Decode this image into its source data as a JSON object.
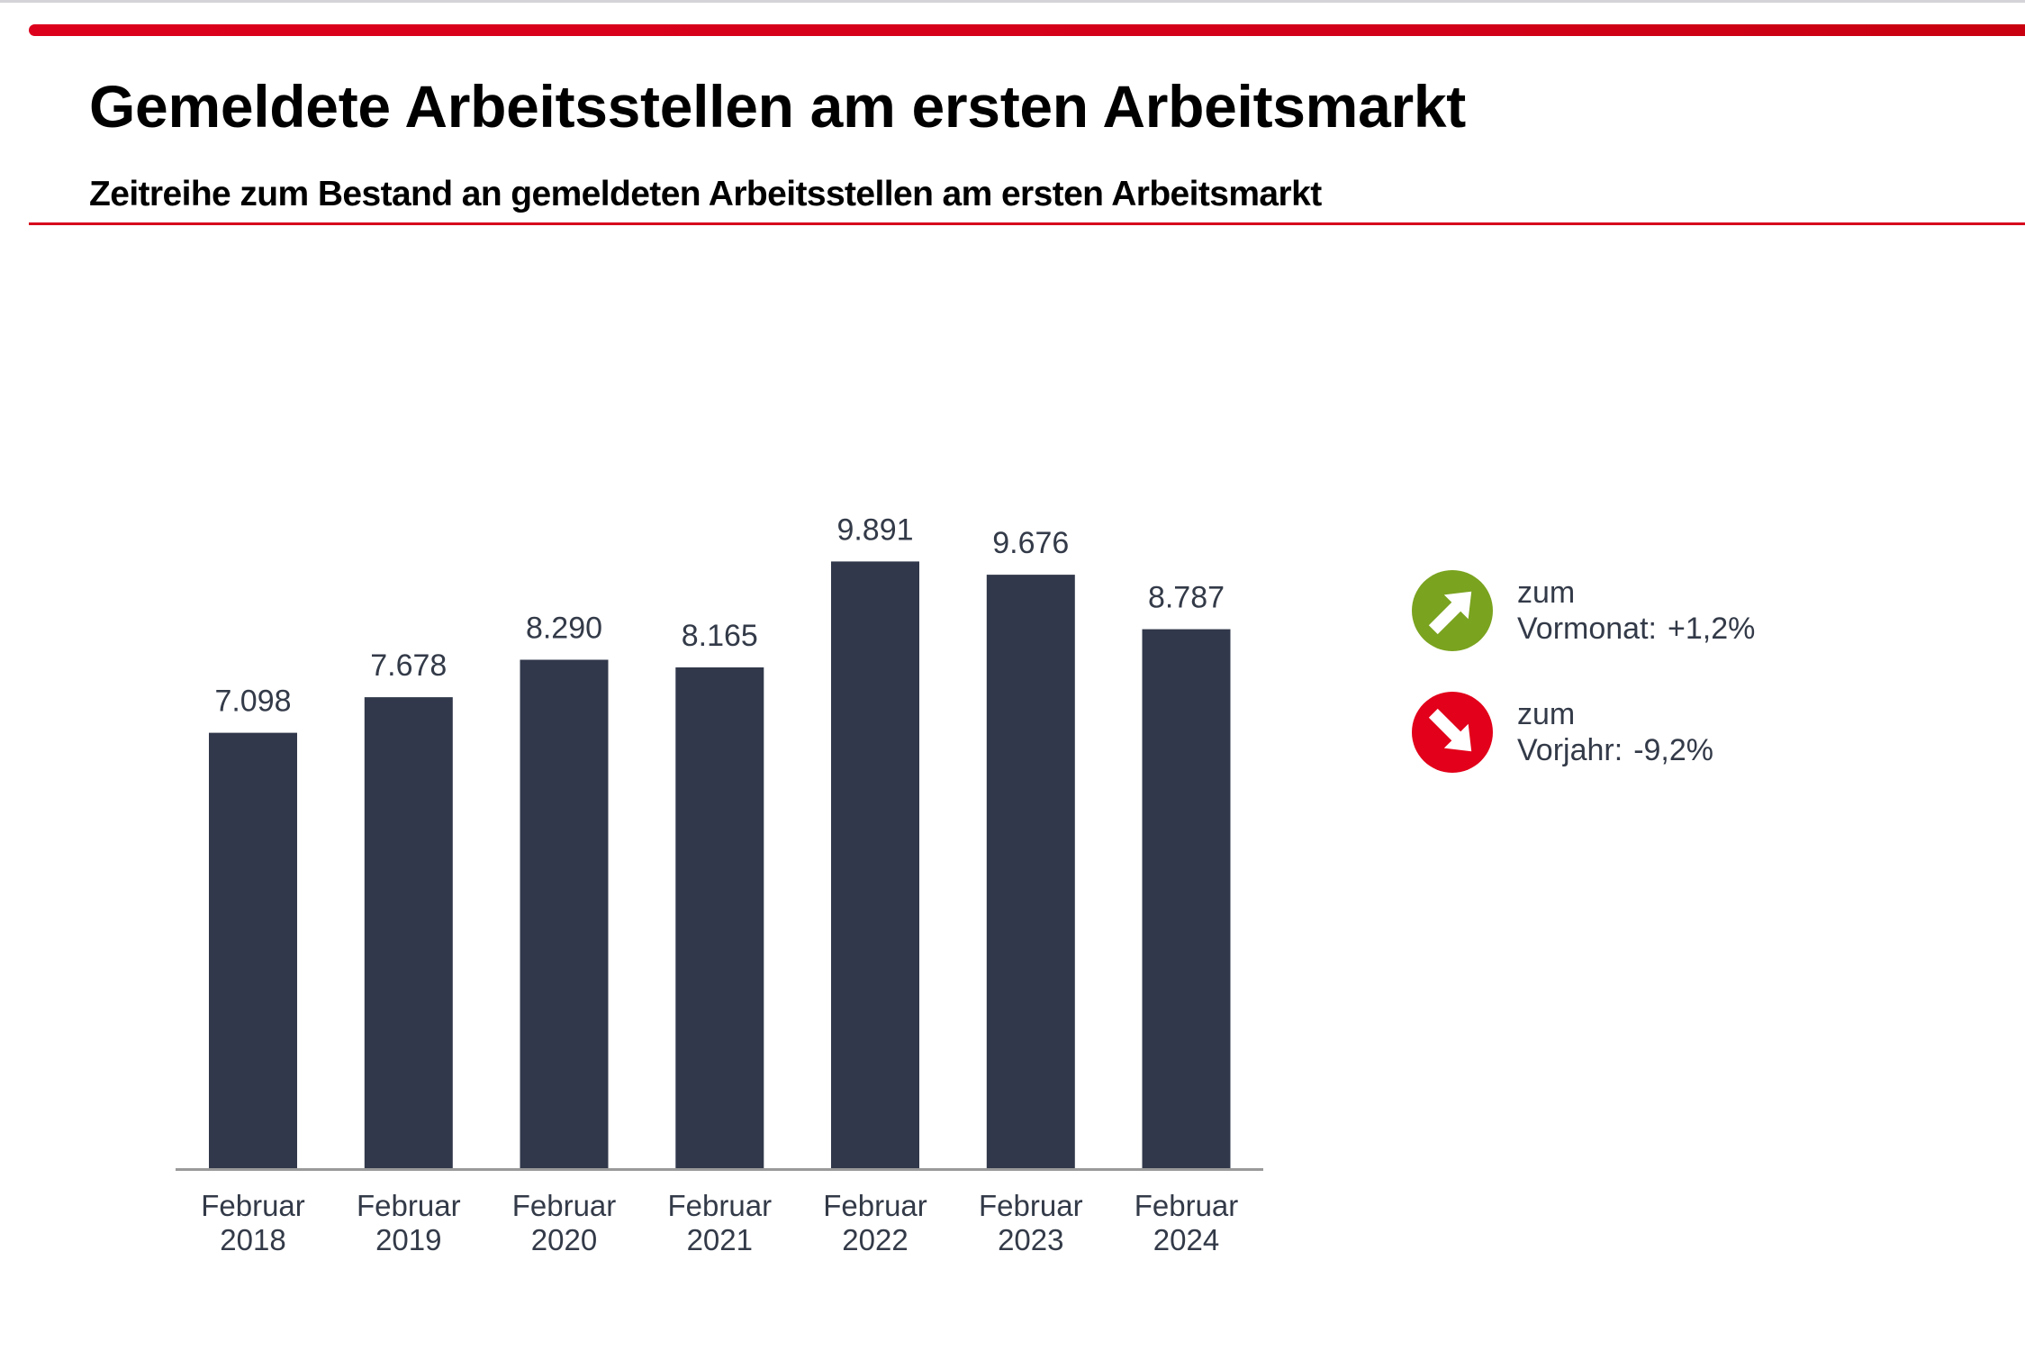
{
  "header": {
    "title": "Gemeldete Arbeitsstellen am ersten Arbeitsmarkt",
    "subtitle": "Zeitreihe zum Bestand an gemeldeten Arbeitsstellen am ersten Arbeitsmarkt"
  },
  "colors": {
    "accent_red": "#d6001c",
    "bar": "#31384b",
    "text": "#333a48",
    "axis": "#9a9a9a",
    "up_green": "#7aa31f",
    "down_red": "#e2001a"
  },
  "chart_data": {
    "type": "bar",
    "title": "Gemeldete Arbeitsstellen am ersten Arbeitsmarkt",
    "subtitle": "Zeitreihe zum Bestand an gemeldeten Arbeitsstellen am ersten Arbeitsmarkt",
    "xlabel": "",
    "ylabel": "",
    "categories": [
      [
        "Februar",
        "2018"
      ],
      [
        "Februar",
        "2019"
      ],
      [
        "Februar",
        "2020"
      ],
      [
        "Februar",
        "2021"
      ],
      [
        "Februar",
        "2022"
      ],
      [
        "Februar",
        "2023"
      ],
      [
        "Februar",
        "2024"
      ]
    ],
    "values": [
      7098,
      7678,
      8290,
      8165,
      9891,
      9676,
      8787
    ],
    "value_labels": [
      "7.098",
      "7.678",
      "8.290",
      "8.165",
      "9.891",
      "9.676",
      "8.787"
    ],
    "ylim": [
      0,
      10000
    ],
    "grid": false,
    "y_axis_visible": false,
    "legend": "right"
  },
  "legend": {
    "items": [
      {
        "icon": "arrow-up-right-icon",
        "line1": "zum",
        "line2": "Vormonat:",
        "value": "+1,2%",
        "trend": "up"
      },
      {
        "icon": "arrow-down-right-icon",
        "line1": "zum",
        "line2": "Vorjahr:",
        "value": "-9,2%",
        "trend": "down"
      }
    ]
  }
}
